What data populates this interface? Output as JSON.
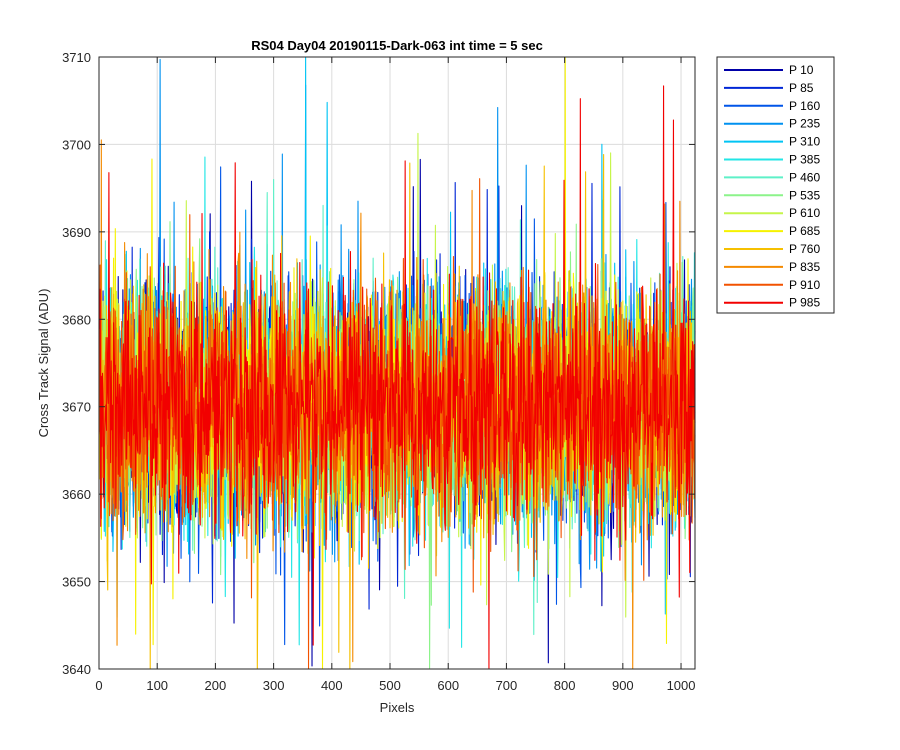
{
  "chart_data": {
    "type": "line",
    "title": "RS04 Day04 20190115-Dark-063 int time = 5 sec",
    "xlabel": "Pixels",
    "ylabel": "Cross Track Signal (ADU)",
    "xlim": [
      0,
      1024
    ],
    "ylim": [
      3640,
      3710
    ],
    "xticks": [
      0,
      100,
      200,
      300,
      400,
      500,
      600,
      700,
      800,
      900,
      1000
    ],
    "yticks": [
      3640,
      3650,
      3660,
      3670,
      3680,
      3690,
      3700,
      3710
    ],
    "grid": true,
    "legend_position": "outside-top-right",
    "n_points_per_series": 1024,
    "signal_mean": 3670,
    "signal_range_typical": [
      3655,
      3685
    ],
    "series": [
      {
        "name": "P 10",
        "color": "#0000A8"
      },
      {
        "name": "P 85",
        "color": "#0026D6"
      },
      {
        "name": "P 160",
        "color": "#0055E8"
      },
      {
        "name": "P 235",
        "color": "#0091F0"
      },
      {
        "name": "P 310",
        "color": "#00C4F4"
      },
      {
        "name": "P 385",
        "color": "#22E6E6"
      },
      {
        "name": "P 460",
        "color": "#5EF0C8"
      },
      {
        "name": "P 535",
        "color": "#8CF38A"
      },
      {
        "name": "P 610",
        "color": "#C6F54A"
      },
      {
        "name": "P 685",
        "color": "#F6F200"
      },
      {
        "name": "P 760",
        "color": "#F6C000"
      },
      {
        "name": "P 835",
        "color": "#F48A00"
      },
      {
        "name": "P 910",
        "color": "#F25200"
      },
      {
        "name": "P 985",
        "color": "#F20000"
      }
    ]
  }
}
